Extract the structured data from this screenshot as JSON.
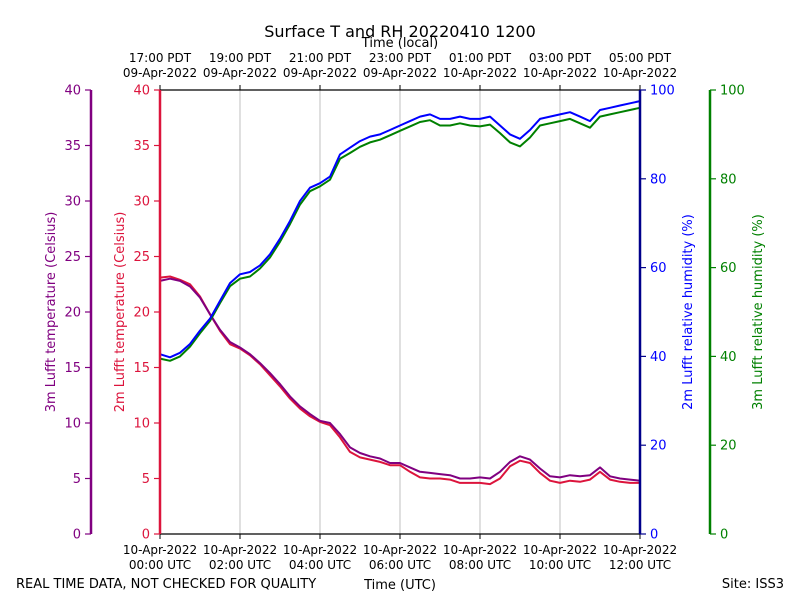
{
  "title": "Surface T and RH 20220410 1200",
  "footer": {
    "disclaimer": "REAL TIME DATA, NOT CHECKED FOR QUALITY",
    "site": "Site: ISS3"
  },
  "colors": {
    "t3m": "#800080",
    "t2m": "#dc143c",
    "rh2m": "#0000ff",
    "rh3m": "#008000",
    "axis_dark_blue": "#00008b",
    "grid": "#b0b0b0"
  },
  "chart_data": {
    "type": "line",
    "title": "Surface T and RH 20220410 1200",
    "xlabel": "Time (UTC)",
    "xlabel_top": "Time (local)",
    "xlim_hours_utc": [
      0,
      12
    ],
    "x_ticks_bottom": [
      {
        "hour": 0,
        "line1": "10-Apr-2022",
        "line2": "00:00 UTC"
      },
      {
        "hour": 2,
        "line1": "10-Apr-2022",
        "line2": "02:00 UTC"
      },
      {
        "hour": 4,
        "line1": "10-Apr-2022",
        "line2": "04:00 UTC"
      },
      {
        "hour": 6,
        "line1": "10-Apr-2022",
        "line2": "06:00 UTC"
      },
      {
        "hour": 8,
        "line1": "10-Apr-2022",
        "line2": "08:00 UTC"
      },
      {
        "hour": 10,
        "line1": "10-Apr-2022",
        "line2": "10:00 UTC"
      },
      {
        "hour": 12,
        "line1": "10-Apr-2022",
        "line2": "12:00 UTC"
      }
    ],
    "x_ticks_top": [
      {
        "hour": 0,
        "line1": "17:00 PDT",
        "line2": "09-Apr-2022"
      },
      {
        "hour": 2,
        "line1": "19:00 PDT",
        "line2": "09-Apr-2022"
      },
      {
        "hour": 4,
        "line1": "21:00 PDT",
        "line2": "09-Apr-2022"
      },
      {
        "hour": 6,
        "line1": "23:00 PDT",
        "line2": "09-Apr-2022"
      },
      {
        "hour": 8,
        "line1": "01:00 PDT",
        "line2": "10-Apr-2022"
      },
      {
        "hour": 10,
        "line1": "03:00 PDT",
        "line2": "10-Apr-2022"
      },
      {
        "hour": 12,
        "line1": "05:00 PDT",
        "line2": "10-Apr-2022"
      }
    ],
    "axes": {
      "t3m": {
        "label": "3m Lufft temperature (Celsius)",
        "ylim": [
          0,
          40
        ],
        "ticks": [
          0,
          5,
          10,
          15,
          20,
          25,
          30,
          35,
          40
        ]
      },
      "t2m": {
        "label": "2m Lufft temperature (Celsius)",
        "ylim": [
          0,
          40
        ],
        "ticks": [
          0,
          5,
          10,
          15,
          20,
          25,
          30,
          35,
          40
        ]
      },
      "rh2m": {
        "label": "2m Lufft relative humidity (%)",
        "ylim": [
          0,
          100
        ],
        "ticks": [
          0,
          20,
          40,
          60,
          80,
          100
        ]
      },
      "rh3m": {
        "label": "3m Lufft relative humidity (%)",
        "ylim": [
          0,
          100
        ],
        "ticks": [
          0,
          20,
          40,
          60,
          80,
          100
        ]
      }
    },
    "series": [
      {
        "name": "3m Lufft temperature",
        "key": "t3m",
        "axis": "t3m",
        "x": [
          0,
          0.25,
          0.5,
          0.75,
          1.0,
          1.25,
          1.5,
          1.75,
          2.0,
          2.25,
          2.5,
          2.75,
          3.0,
          3.25,
          3.5,
          3.75,
          4.0,
          4.25,
          4.5,
          4.75,
          5.0,
          5.25,
          5.5,
          5.75,
          6.0,
          6.25,
          6.5,
          6.75,
          7.0,
          7.25,
          7.5,
          7.75,
          8.0,
          8.25,
          8.5,
          8.75,
          9.0,
          9.25,
          9.5,
          9.75,
          10.0,
          10.25,
          10.5,
          10.75,
          11.0,
          11.25,
          11.5,
          11.75,
          12.0
        ],
        "values": [
          22.8,
          23.0,
          22.8,
          22.3,
          21.3,
          19.8,
          18.4,
          17.3,
          16.8,
          16.2,
          15.4,
          14.5,
          13.5,
          12.4,
          11.5,
          10.8,
          10.2,
          10.0,
          9.0,
          7.8,
          7.3,
          7.0,
          6.8,
          6.4,
          6.4,
          6.0,
          5.6,
          5.5,
          5.4,
          5.3,
          5.0,
          5.0,
          5.1,
          5.0,
          5.6,
          6.5,
          7.0,
          6.7,
          5.9,
          5.2,
          5.1,
          5.3,
          5.2,
          5.3,
          6.0,
          5.2,
          5.0,
          4.9,
          4.8
        ]
      },
      {
        "name": "2m Lufft temperature",
        "key": "t2m",
        "axis": "t2m",
        "x": [
          0,
          0.25,
          0.5,
          0.75,
          1.0,
          1.25,
          1.5,
          1.75,
          2.0,
          2.25,
          2.5,
          2.75,
          3.0,
          3.25,
          3.5,
          3.75,
          4.0,
          4.25,
          4.5,
          4.75,
          5.0,
          5.25,
          5.5,
          5.75,
          6.0,
          6.25,
          6.5,
          6.75,
          7.0,
          7.25,
          7.5,
          7.75,
          8.0,
          8.25,
          8.5,
          8.75,
          9.0,
          9.25,
          9.5,
          9.75,
          10.0,
          10.25,
          10.5,
          10.75,
          11.0,
          11.25,
          11.5,
          11.75,
          12.0
        ],
        "values": [
          23.1,
          23.2,
          22.9,
          22.5,
          21.4,
          19.8,
          18.3,
          17.1,
          16.7,
          16.1,
          15.3,
          14.3,
          13.3,
          12.2,
          11.3,
          10.6,
          10.1,
          9.8,
          8.7,
          7.4,
          6.9,
          6.7,
          6.5,
          6.2,
          6.2,
          5.6,
          5.1,
          5.0,
          5.0,
          4.9,
          4.6,
          4.6,
          4.6,
          4.5,
          5.0,
          6.1,
          6.6,
          6.4,
          5.5,
          4.8,
          4.6,
          4.8,
          4.7,
          4.9,
          5.6,
          4.9,
          4.7,
          4.6,
          4.6
        ]
      },
      {
        "name": "2m Lufft relative humidity",
        "key": "rh2m",
        "axis": "rh2m",
        "x": [
          0,
          0.25,
          0.5,
          0.75,
          1.0,
          1.25,
          1.5,
          1.75,
          2.0,
          2.25,
          2.5,
          2.75,
          3.0,
          3.25,
          3.5,
          3.75,
          4.0,
          4.25,
          4.5,
          4.75,
          5.0,
          5.25,
          5.5,
          5.75,
          6.0,
          6.25,
          6.5,
          6.75,
          7.0,
          7.25,
          7.5,
          7.75,
          8.0,
          8.25,
          8.5,
          8.75,
          9.0,
          9.25,
          9.5,
          9.75,
          10.0,
          10.25,
          10.5,
          10.75,
          11.0,
          11.25,
          11.5,
          11.75,
          12.0
        ],
        "values": [
          40.5,
          39.8,
          40.8,
          42.8,
          45.8,
          48.5,
          52.5,
          56.5,
          58.5,
          59.0,
          60.5,
          63.0,
          66.5,
          70.5,
          75.0,
          78.0,
          79.0,
          80.5,
          85.5,
          87.0,
          88.5,
          89.5,
          90.0,
          91.0,
          92.0,
          93.0,
          94.0,
          94.5,
          93.5,
          93.5,
          94.0,
          93.5,
          93.5,
          94.0,
          92.0,
          90.0,
          89.0,
          91.0,
          93.5,
          94.0,
          94.5,
          95.0,
          94.0,
          93.0,
          95.5,
          96.0,
          96.5,
          97.0,
          97.5
        ]
      },
      {
        "name": "3m Lufft relative humidity",
        "key": "rh3m",
        "axis": "rh3m",
        "x": [
          0,
          0.25,
          0.5,
          0.75,
          1.0,
          1.25,
          1.5,
          1.75,
          2.0,
          2.25,
          2.5,
          2.75,
          3.0,
          3.25,
          3.5,
          3.75,
          4.0,
          4.25,
          4.5,
          4.75,
          5.0,
          5.25,
          5.5,
          5.75,
          6.0,
          6.25,
          6.5,
          6.75,
          7.0,
          7.25,
          7.5,
          7.75,
          8.0,
          8.25,
          8.5,
          8.75,
          9.0,
          9.25,
          9.5,
          9.75,
          10.0,
          10.25,
          10.5,
          10.75,
          11.0,
          11.25,
          11.5,
          11.75,
          12.0
        ],
        "values": [
          39.5,
          39.0,
          40.0,
          42.2,
          45.2,
          48.0,
          52.0,
          55.8,
          57.5,
          58.0,
          59.8,
          62.3,
          65.8,
          69.8,
          74.2,
          77.2,
          78.3,
          79.8,
          84.5,
          85.8,
          87.2,
          88.2,
          88.8,
          89.8,
          90.8,
          91.8,
          92.8,
          93.2,
          92.0,
          92.0,
          92.5,
          92.0,
          91.8,
          92.2,
          90.3,
          88.2,
          87.3,
          89.3,
          92.0,
          92.5,
          93.0,
          93.5,
          92.5,
          91.5,
          94.0,
          94.5,
          95.0,
          95.5,
          96.0
        ]
      }
    ]
  }
}
